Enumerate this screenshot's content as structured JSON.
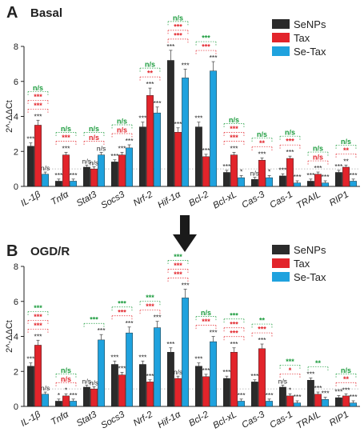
{
  "colors": {
    "SeNPs": "#2b2b2b",
    "Tax": "#e2242b",
    "SeTax": "#1fa2de",
    "sig_green": "#1a9b3c",
    "sig_red": "#e2242b",
    "sig_gray": "#333333"
  },
  "arrow_icon": "down-arrow-icon",
  "chart_data": [
    {
      "type": "bar",
      "panel_label": "A",
      "title": "Basal",
      "ylabel": "2^-ΔΔCt",
      "ylim": [
        0,
        8
      ],
      "yticks": [
        0,
        2,
        4,
        6,
        8
      ],
      "categories": [
        "IL-1β",
        "Tnfα",
        "Stat3",
        "Socs3",
        "Nrf-2",
        "Hif-1α",
        "Bcl-2",
        "Bcl-xL",
        "Cas-3",
        "Cas-1",
        "TRAIL",
        "RIP1"
      ],
      "series": [
        {
          "name": "SeNPs",
          "values": [
            2.3,
            0.3,
            1.1,
            1.4,
            3.4,
            7.2,
            3.4,
            0.8,
            0.4,
            0.6,
            0.3,
            0.8
          ]
        },
        {
          "name": "Tax",
          "values": [
            3.5,
            1.8,
            1.0,
            1.8,
            5.2,
            3.1,
            1.7,
            1.8,
            1.5,
            1.6,
            0.7,
            1.1
          ]
        },
        {
          "name": "Se-Tax",
          "values": [
            0.7,
            0.3,
            1.8,
            2.2,
            4.2,
            6.2,
            6.6,
            0.5,
            0.5,
            0.2,
            0.2,
            0.3
          ]
        }
      ],
      "bar_stars": [
        [
          "***",
          "***",
          "n/s"
        ],
        [
          "***",
          "***",
          "***"
        ],
        [
          "n/s",
          "n/s",
          "n/s"
        ],
        [
          "***",
          "***",
          "***"
        ],
        [
          "***",
          "***",
          "***"
        ],
        [
          "***",
          "***",
          "***"
        ],
        [
          "***",
          "***",
          "***"
        ],
        [
          "***",
          "***",
          "*"
        ],
        [
          "n/s",
          "***",
          "*"
        ],
        [
          "***",
          "***",
          "***"
        ],
        [
          "***",
          "***",
          "***"
        ],
        [
          "***",
          "**",
          "***"
        ]
      ],
      "comparisons": [
        [
          "n/s",
          "***",
          "***"
        ],
        [
          "n/s",
          "***",
          ""
        ],
        [
          "n/s",
          "n/s",
          ""
        ],
        [
          "n/s",
          "n/s",
          ""
        ],
        [
          "n/s",
          "**",
          ""
        ],
        [
          "n/s",
          "***",
          "***"
        ],
        [
          "***",
          "***",
          ""
        ],
        [
          "n/s",
          "***",
          "***"
        ],
        [
          "n/s",
          "**",
          ""
        ],
        [
          "n/s",
          "***",
          ""
        ],
        [
          "n/s",
          "n/s",
          ""
        ],
        [
          "n/s",
          "**",
          ""
        ]
      ],
      "legend": [
        "SeNPs",
        "Tax",
        "Se-Tax"
      ]
    },
    {
      "type": "bar",
      "panel_label": "B",
      "title": "OGD/R",
      "ylabel": "2^-ΔΔCt",
      "ylim": [
        0,
        8
      ],
      "yticks": [
        0,
        2,
        4,
        6,
        8
      ],
      "categories": [
        "IL-1β",
        "Tnfα",
        "Stat3",
        "Socs3",
        "Nrf-2",
        "Hif-1α",
        "Bcl-2",
        "Bcl-xL",
        "Cas-3",
        "Cas-1",
        "TRAIL",
        "RIP1"
      ],
      "series": [
        {
          "name": "SeNPs",
          "values": [
            2.3,
            0.3,
            1.1,
            2.4,
            2.4,
            3.1,
            2.3,
            1.6,
            1.4,
            1.1,
            1.5,
            0.5
          ]
        },
        {
          "name": "Tax",
          "values": [
            3.5,
            0.6,
            1.0,
            1.8,
            1.4,
            1.6,
            1.7,
            3.1,
            3.3,
            0.6,
            0.7,
            0.6
          ]
        },
        {
          "name": "Se-Tax",
          "values": [
            0.7,
            0.3,
            3.8,
            4.2,
            4.5,
            6.2,
            3.7,
            0.3,
            0.3,
            0.2,
            0.4,
            0.2
          ]
        }
      ],
      "bar_stars": [
        [
          "***",
          "***",
          "n/s"
        ],
        [
          "*",
          "*",
          "***"
        ],
        [
          "n/s",
          "n/s",
          "***"
        ],
        [
          "***",
          "***",
          "***"
        ],
        [
          "***",
          "***",
          "***"
        ],
        [
          "***",
          "n/s",
          "***"
        ],
        [
          "***",
          "***",
          "***"
        ],
        [
          "***",
          "***",
          "***"
        ],
        [
          "***",
          "***",
          "***"
        ],
        [
          "n/s",
          "*",
          "***"
        ],
        [
          "***",
          "***",
          "***"
        ],
        [
          "***",
          "***",
          "***"
        ]
      ],
      "comparisons": [
        [
          "***",
          "***",
          "***"
        ],
        [
          "n/s",
          "n/s",
          ""
        ],
        [
          "***",
          "",
          ""
        ],
        [
          "***",
          "***",
          ""
        ],
        [
          "***",
          "***",
          ""
        ],
        [
          "***",
          "***",
          "***"
        ],
        [
          "n/s",
          "***",
          ""
        ],
        [
          "***",
          "***",
          "***"
        ],
        [
          "**",
          "***",
          ""
        ],
        [
          "***",
          "*",
          ""
        ],
        [
          "**",
          "",
          ""
        ],
        [
          "n/s",
          "**",
          ""
        ]
      ],
      "legend": [
        "SeNPs",
        "Tax",
        "Se-Tax"
      ]
    }
  ]
}
